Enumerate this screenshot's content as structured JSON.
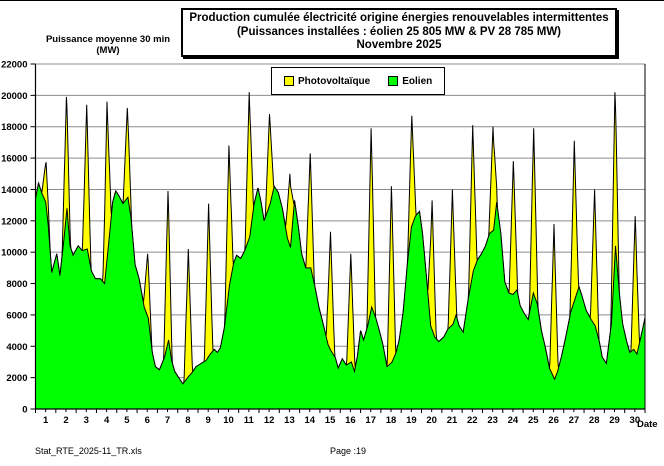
{
  "title": {
    "line1": "Production cumulée électricité origine énergies renouvelables intermittentes",
    "line2": "(Puissances installées : éolien 25 805 MW & PV 28 785 MW)",
    "line3": "Novembre 2025"
  },
  "axes": {
    "y_title_line1": "Puissance moyenne 30 min",
    "y_title_line2": "(MW)",
    "x_title": "Date",
    "y_ticks": [
      0,
      2000,
      4000,
      6000,
      8000,
      10000,
      12000,
      14000,
      16000,
      18000,
      20000,
      22000
    ],
    "x_ticks": [
      1,
      2,
      3,
      4,
      5,
      6,
      7,
      8,
      9,
      10,
      11,
      12,
      13,
      14,
      15,
      16,
      17,
      18,
      19,
      20,
      21,
      22,
      23,
      24,
      25,
      26,
      27,
      28,
      29,
      30
    ]
  },
  "legend": {
    "items": [
      {
        "label": "Photovoltaïque",
        "color": "#FFFF00"
      },
      {
        "label": "Eolien",
        "color": "#00FF00"
      }
    ]
  },
  "footer": {
    "file_label": "Stat_RTE_2025-11_TR.xls",
    "page_label": "Page :19"
  },
  "chart_data": {
    "type": "area",
    "stacked": true,
    "title": "Production cumulée électricité origine énergies renouvelables intermittentes (Puissances installées : éolien 25 805 MW & PV 28 785 MW) Novembre 2025",
    "xlabel": "Date",
    "ylabel": "Puissance moyenne 30 min (MW)",
    "ylim": [
      0,
      22000
    ],
    "xlim_days": [
      0,
      30
    ],
    "y_tick_step": 2000,
    "grid": true,
    "legend_position": "top-center",
    "colors": {
      "pv": "#FFFF00",
      "wind": "#00FF00",
      "outline": "#000000",
      "gridline": "#8c8c8c"
    },
    "pv_peak_time": 0.52,
    "pv_halfwidth": 0.21,
    "pv_peak_totals": [
      15700,
      19900,
      19400,
      19600,
      19200,
      9900,
      13900,
      10200,
      13100,
      16800,
      20200,
      18800,
      15000,
      16300,
      11300,
      9900,
      17900,
      14200,
      18700,
      13300,
      14000,
      18100,
      18000,
      15800,
      17900,
      11800,
      17100,
      14000,
      20200,
      12300
    ],
    "series": [
      {
        "name": "Eolien",
        "unit": "MW",
        "points": [
          [
            0,
            13400
          ],
          [
            0.15,
            14400
          ],
          [
            0.3,
            13800
          ],
          [
            0.5,
            13200
          ],
          [
            0.62,
            11800
          ],
          [
            0.8,
            8700
          ],
          [
            0.92,
            9300
          ],
          [
            1.05,
            9900
          ],
          [
            1.2,
            8500
          ],
          [
            1.4,
            10800
          ],
          [
            1.55,
            12800
          ],
          [
            1.7,
            10400
          ],
          [
            1.85,
            9800
          ],
          [
            2.1,
            10400
          ],
          [
            2.3,
            10100
          ],
          [
            2.55,
            10200
          ],
          [
            2.75,
            8800
          ],
          [
            2.95,
            8300
          ],
          [
            3.2,
            8300
          ],
          [
            3.4,
            8000
          ],
          [
            3.6,
            10500
          ],
          [
            3.8,
            13200
          ],
          [
            3.95,
            13900
          ],
          [
            4.1,
            13600
          ],
          [
            4.3,
            13100
          ],
          [
            4.55,
            13500
          ],
          [
            4.7,
            12200
          ],
          [
            4.9,
            9200
          ],
          [
            5.1,
            8300
          ],
          [
            5.35,
            6500
          ],
          [
            5.55,
            5800
          ],
          [
            5.75,
            3600
          ],
          [
            5.9,
            2700
          ],
          [
            6.1,
            2500
          ],
          [
            6.35,
            3300
          ],
          [
            6.55,
            4400
          ],
          [
            6.7,
            3100
          ],
          [
            6.85,
            2400
          ],
          [
            7.05,
            2000
          ],
          [
            7.25,
            1600
          ],
          [
            7.55,
            2100
          ],
          [
            7.75,
            2400
          ],
          [
            7.9,
            2700
          ],
          [
            8.15,
            2900
          ],
          [
            8.4,
            3100
          ],
          [
            8.6,
            3500
          ],
          [
            8.8,
            3800
          ],
          [
            8.95,
            3600
          ],
          [
            9.1,
            3900
          ],
          [
            9.3,
            5200
          ],
          [
            9.55,
            7900
          ],
          [
            9.75,
            9300
          ],
          [
            9.9,
            9800
          ],
          [
            10.1,
            9600
          ],
          [
            10.3,
            10100
          ],
          [
            10.55,
            11000
          ],
          [
            10.75,
            13000
          ],
          [
            10.95,
            14100
          ],
          [
            11.1,
            13200
          ],
          [
            11.25,
            12000
          ],
          [
            11.55,
            13100
          ],
          [
            11.75,
            14200
          ],
          [
            11.95,
            13800
          ],
          [
            12.15,
            12800
          ],
          [
            12.4,
            10900
          ],
          [
            12.55,
            10300
          ],
          [
            12.75,
            13300
          ],
          [
            12.95,
            11500
          ],
          [
            13.1,
            9900
          ],
          [
            13.3,
            9000
          ],
          [
            13.55,
            9000
          ],
          [
            13.75,
            7800
          ],
          [
            13.95,
            6500
          ],
          [
            14.2,
            5200
          ],
          [
            14.4,
            4100
          ],
          [
            14.55,
            3700
          ],
          [
            14.75,
            3300
          ],
          [
            14.9,
            2600
          ],
          [
            15.1,
            3200
          ],
          [
            15.3,
            2800
          ],
          [
            15.55,
            3000
          ],
          [
            15.7,
            2400
          ],
          [
            15.85,
            3400
          ],
          [
            16,
            5000
          ],
          [
            16.15,
            4400
          ],
          [
            16.35,
            5300
          ],
          [
            16.55,
            6500
          ],
          [
            16.75,
            5800
          ],
          [
            16.9,
            5100
          ],
          [
            17.1,
            4100
          ],
          [
            17.3,
            2700
          ],
          [
            17.55,
            3000
          ],
          [
            17.75,
            3600
          ],
          [
            17.9,
            4400
          ],
          [
            18.1,
            6200
          ],
          [
            18.3,
            9200
          ],
          [
            18.5,
            11600
          ],
          [
            18.7,
            12300
          ],
          [
            18.9,
            12600
          ],
          [
            19.05,
            11200
          ],
          [
            19.25,
            8300
          ],
          [
            19.45,
            5300
          ],
          [
            19.65,
            4600
          ],
          [
            19.85,
            4300
          ],
          [
            20.1,
            4600
          ],
          [
            20.3,
            5100
          ],
          [
            20.55,
            5400
          ],
          [
            20.7,
            6000
          ],
          [
            20.85,
            5300
          ],
          [
            21.05,
            4900
          ],
          [
            21.3,
            7000
          ],
          [
            21.55,
            8800
          ],
          [
            21.75,
            9500
          ],
          [
            21.95,
            9900
          ],
          [
            22.15,
            10400
          ],
          [
            22.35,
            11200
          ],
          [
            22.55,
            11400
          ],
          [
            22.7,
            13200
          ],
          [
            22.9,
            11200
          ],
          [
            23.1,
            8100
          ],
          [
            23.3,
            7400
          ],
          [
            23.5,
            7300
          ],
          [
            23.7,
            7600
          ],
          [
            23.85,
            6600
          ],
          [
            24.05,
            6100
          ],
          [
            24.25,
            5700
          ],
          [
            24.5,
            7400
          ],
          [
            24.7,
            6700
          ],
          [
            24.9,
            5000
          ],
          [
            25.1,
            3900
          ],
          [
            25.3,
            2600
          ],
          [
            25.55,
            1900
          ],
          [
            25.7,
            2400
          ],
          [
            25.9,
            3400
          ],
          [
            26.1,
            4600
          ],
          [
            26.35,
            6200
          ],
          [
            26.55,
            7000
          ],
          [
            26.75,
            7800
          ],
          [
            26.9,
            7200
          ],
          [
            27.1,
            6300
          ],
          [
            27.35,
            5700
          ],
          [
            27.55,
            5300
          ],
          [
            27.75,
            4300
          ],
          [
            27.9,
            3300
          ],
          [
            28.1,
            2900
          ],
          [
            28.35,
            5500
          ],
          [
            28.55,
            10400
          ],
          [
            28.75,
            7200
          ],
          [
            28.9,
            5400
          ],
          [
            29.1,
            4300
          ],
          [
            29.25,
            3600
          ],
          [
            29.45,
            3800
          ],
          [
            29.6,
            3500
          ],
          [
            29.8,
            4600
          ],
          [
            30,
            5800
          ]
        ]
      },
      {
        "name": "Photovoltaïque",
        "unit": "MW",
        "note": "stacked on top of Eolien; daily midday peaks, cumulative total given in pv_peak_totals"
      }
    ]
  }
}
